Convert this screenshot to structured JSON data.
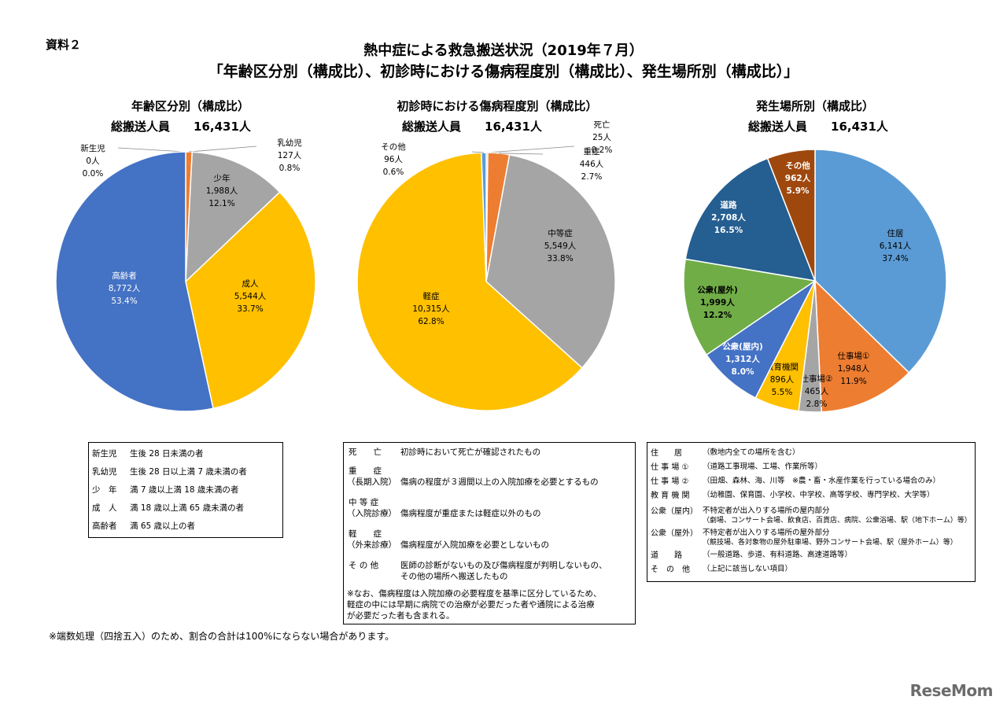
{
  "doc_label": "資料２",
  "title_line1": "熱中症による救急搬送状況（2019年７月）",
  "title_line2": "「年齢区分別（構成比）、初診時における傷病程度別（構成比）、発生場所別（構成比）」",
  "chart_data": [
    {
      "type": "pie",
      "title": "年齢区分別（構成比）",
      "total_label": "総搬送人員　　16,431人",
      "slices": [
        {
          "name": "新生児",
          "count": "0人",
          "pct": "0.0%",
          "value": 0.0,
          "color": "#5b9bd5"
        },
        {
          "name": "乳幼児",
          "count": "127人",
          "pct": "0.8%",
          "value": 0.8,
          "color": "#ed7d31"
        },
        {
          "name": "少年",
          "count": "1,988人",
          "pct": "12.1%",
          "value": 12.1,
          "color": "#a5a5a5"
        },
        {
          "name": "成人",
          "count": "5,544人",
          "pct": "33.7%",
          "value": 33.7,
          "color": "#ffc000"
        },
        {
          "name": "高齢者",
          "count": "8,772人",
          "pct": "53.4%",
          "value": 53.4,
          "color": "#4472c4"
        }
      ]
    },
    {
      "type": "pie",
      "title": "初診時における傷病程度別（構成比）",
      "total_label": "総搬送人員　　16,431人",
      "slices": [
        {
          "name": "死亡",
          "count": "25人",
          "pct": "0.2%",
          "value": 0.2,
          "color": "#4472c4"
        },
        {
          "name": "重症",
          "count": "446人",
          "pct": "2.7%",
          "value": 2.7,
          "color": "#ed7d31"
        },
        {
          "name": "中等症",
          "count": "5,549人",
          "pct": "33.8%",
          "value": 33.8,
          "color": "#a5a5a5"
        },
        {
          "name": "軽症",
          "count": "10,315人",
          "pct": "62.8%",
          "value": 62.8,
          "color": "#ffc000"
        },
        {
          "name": "その他",
          "count": "96人",
          "pct": "0.6%",
          "value": 0.6,
          "color": "#5b9bd5"
        }
      ]
    },
    {
      "type": "pie",
      "title": "発生場所別（構成比）",
      "total_label": "総搬送人員　　16,431人",
      "slices": [
        {
          "name": "住居",
          "count": "6,141人",
          "pct": "37.4%",
          "value": 37.4,
          "color": "#5b9bd5"
        },
        {
          "name": "仕事場①",
          "count": "1,948人",
          "pct": "11.9%",
          "value": 11.9,
          "color": "#ed7d31"
        },
        {
          "name": "仕事場②",
          "count": "465人",
          "pct": "2.8%",
          "value": 2.8,
          "color": "#a5a5a5"
        },
        {
          "name": "教育機関",
          "count": "896人",
          "pct": "5.5%",
          "value": 5.5,
          "color": "#ffc000"
        },
        {
          "name": "公衆(屋内)",
          "count": "1,312人",
          "pct": "8.0%",
          "value": 8.0,
          "color": "#4472c4"
        },
        {
          "name": "公衆(屋外)",
          "count": "1,999人",
          "pct": "12.2%",
          "value": 12.2,
          "color": "#70ad47"
        },
        {
          "name": "道路",
          "count": "2,708人",
          "pct": "16.5%",
          "value": 16.5,
          "color": "#255e91"
        },
        {
          "name": "その他",
          "count": "962人",
          "pct": "5.9%",
          "value": 5.9,
          "color": "#9e480e"
        }
      ]
    }
  ],
  "age_definitions": [
    {
      "term": "新生児",
      "desc": "生後 28 日未満の者"
    },
    {
      "term": "乳幼児",
      "desc": "生後 28 日以上満 7 歳未満の者"
    },
    {
      "term": "少　年",
      "desc": "満 7 歳以上満 18 歳未満の者"
    },
    {
      "term": "成　人",
      "desc": "満 18 歳以上満 65 歳未満の者"
    },
    {
      "term": "高齢者",
      "desc": "満 65 歳以上の者"
    }
  ],
  "severity_definitions": [
    {
      "term": "死　　亡",
      "sub": "",
      "desc": "初診時において死亡が確認されたもの"
    },
    {
      "term": "重　　症",
      "sub": "（長期入院）",
      "desc": "傷病の程度が３週間以上の入院加療を必要とするもの"
    },
    {
      "term": "中 等 症",
      "sub": "（入院診療）",
      "desc": "傷病程度が重症または軽症以外のもの"
    },
    {
      "term": "軽　　症",
      "sub": "（外来診療）",
      "desc": "傷病程度が入院加療を必要としないもの"
    },
    {
      "term": "そ の 他",
      "sub": "",
      "desc": "医師の診断がないもの及び傷病程度が判明しないもの、",
      "desc2": "その他の場所へ搬送したもの"
    }
  ],
  "severity_note": [
    "※なお、傷病程度は入院加療の必要程度を基準に区分しているため、",
    "軽症の中には早期に病院での治療が必要だった者や通院による治療",
    "が必要だった者も含まれる。"
  ],
  "place_definitions": [
    {
      "term": "住　　居",
      "desc": "（敷地内全ての場所を含む）"
    },
    {
      "term": "仕 事 場 ①",
      "desc": "（道路工事現場、工場、作業所等）"
    },
    {
      "term": "仕 事 場 ②",
      "desc": "（田畑、森林、海、川等　※農・畜・水産作業を行っている場合のみ）"
    },
    {
      "term": "教 育 機 関",
      "desc": "（幼稚園、保育園、小学校、中学校、高等学校、専門学校、大学等）"
    },
    {
      "term": "公衆（屋内）",
      "desc": "不特定者が出入りする場所の屋内部分",
      "desc2": "（劇場、コンサート会場、飲食店、百貨店、病院、公衆浴場、駅（地下ホーム）等）"
    },
    {
      "term": "公衆（屋外）",
      "desc": "不特定者が出入りする場所の屋外部分",
      "desc2": "（競技場、各対象物の屋外駐車場、野外コンサート会場、駅（屋外ホーム）等）"
    },
    {
      "term": "道　　路",
      "desc": "（一般道路、歩道、有料道路、高速道路等）"
    },
    {
      "term": "そ　の　他",
      "desc": "（上記に該当しない項目）"
    }
  ],
  "footnote": "※端数処理（四捨五入）のため、割合の合計は100%にならない場合があります。",
  "logo": "ReseMom"
}
